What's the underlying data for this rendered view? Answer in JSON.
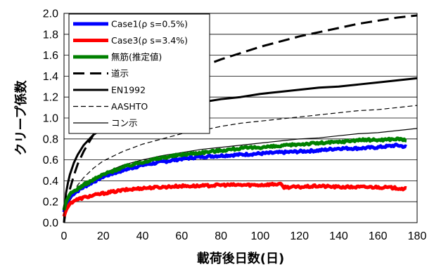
{
  "chart_data": {
    "type": "line",
    "xlabel": "載荷後日数(日)",
    "ylabel": "クリープ係数",
    "xlim": [
      0,
      180
    ],
    "ylim": [
      0,
      2.0
    ],
    "x_ticks": [
      0,
      20,
      40,
      60,
      80,
      100,
      120,
      140,
      160,
      180
    ],
    "y_ticks": [
      0.0,
      0.2,
      0.4,
      0.6,
      0.8,
      1.0,
      1.2,
      1.4,
      1.6,
      1.8,
      2.0
    ],
    "x_tick_labels": [
      "0",
      "20",
      "40",
      "60",
      "80",
      "100",
      "120",
      "140",
      "160",
      "180"
    ],
    "y_tick_labels": [
      "0.0",
      "0.2",
      "0.4",
      "0.6",
      "0.8",
      "1.0",
      "1.2",
      "1.4",
      "1.6",
      "1.8",
      "2.0"
    ],
    "grid": "horizontal",
    "legend_position": "top-left",
    "series": [
      {
        "name": "Case1(ρ s=0.5%)",
        "color": "#0000ff",
        "style": "measured",
        "x": [
          0,
          1,
          3,
          5,
          10,
          20,
          30,
          40,
          50,
          60,
          70,
          80,
          90,
          100,
          110,
          120,
          130,
          140,
          150,
          160,
          170,
          175
        ],
        "y": [
          0.1,
          0.18,
          0.24,
          0.28,
          0.34,
          0.44,
          0.5,
          0.55,
          0.58,
          0.61,
          0.63,
          0.64,
          0.65,
          0.66,
          0.67,
          0.68,
          0.69,
          0.71,
          0.71,
          0.72,
          0.74,
          0.72
        ]
      },
      {
        "name": "Case3(ρ s=3.4%)",
        "color": "#ff0000",
        "style": "measured",
        "x": [
          0,
          1,
          3,
          5,
          10,
          20,
          30,
          40,
          50,
          60,
          70,
          80,
          90,
          100,
          110,
          112,
          120,
          130,
          140,
          150,
          160,
          170,
          175
        ],
        "y": [
          0.06,
          0.12,
          0.18,
          0.21,
          0.24,
          0.28,
          0.31,
          0.33,
          0.34,
          0.35,
          0.35,
          0.36,
          0.36,
          0.36,
          0.37,
          0.34,
          0.34,
          0.35,
          0.34,
          0.34,
          0.34,
          0.33,
          0.32
        ]
      },
      {
        "name": "無筋(推定値)",
        "color": "#008000",
        "style": "measured",
        "x": [
          0,
          1,
          3,
          5,
          10,
          20,
          30,
          40,
          50,
          60,
          70,
          80,
          90,
          100,
          110,
          120,
          130,
          140,
          150,
          160,
          170,
          175
        ],
        "y": [
          0.12,
          0.2,
          0.27,
          0.3,
          0.36,
          0.46,
          0.53,
          0.58,
          0.62,
          0.65,
          0.67,
          0.69,
          0.71,
          0.72,
          0.73,
          0.75,
          0.76,
          0.77,
          0.79,
          0.79,
          0.8,
          0.79
        ]
      },
      {
        "name": "道示",
        "color": "#000000",
        "style": "thick-dash",
        "x": [
          0,
          1,
          2,
          3,
          5,
          7,
          10,
          15,
          20,
          30,
          40,
          50,
          60,
          70,
          80,
          90,
          100,
          110,
          120,
          130,
          140,
          150,
          160,
          170,
          180
        ],
        "y": [
          0,
          0.13,
          0.23,
          0.32,
          0.45,
          0.56,
          0.68,
          0.84,
          0.95,
          1.1,
          1.22,
          1.32,
          1.41,
          1.49,
          1.56,
          1.62,
          1.68,
          1.73,
          1.78,
          1.82,
          1.86,
          1.9,
          1.93,
          1.96,
          1.98
        ]
      },
      {
        "name": "EN1992",
        "color": "#000000",
        "style": "thick-solid",
        "x": [
          0,
          1,
          2,
          3,
          5,
          7,
          10,
          15,
          20,
          30,
          40,
          50,
          60,
          70,
          80,
          90,
          100,
          110,
          120,
          130,
          140,
          150,
          160,
          170,
          180
        ],
        "y": [
          0,
          0.28,
          0.38,
          0.46,
          0.57,
          0.65,
          0.74,
          0.84,
          0.9,
          0.98,
          1.04,
          1.08,
          1.12,
          1.15,
          1.18,
          1.2,
          1.23,
          1.25,
          1.27,
          1.29,
          1.3,
          1.32,
          1.34,
          1.36,
          1.38
        ]
      },
      {
        "name": "AASHTO",
        "color": "#000000",
        "style": "thin-dash",
        "x": [
          0,
          1,
          2,
          3,
          5,
          7,
          10,
          15,
          20,
          30,
          40,
          50,
          60,
          70,
          80,
          90,
          100,
          110,
          120,
          130,
          140,
          150,
          160,
          170,
          180
        ],
        "y": [
          0,
          0.12,
          0.18,
          0.23,
          0.3,
          0.36,
          0.43,
          0.52,
          0.59,
          0.68,
          0.75,
          0.8,
          0.85,
          0.88,
          0.92,
          0.95,
          0.97,
          0.99,
          1.01,
          1.03,
          1.05,
          1.07,
          1.08,
          1.1,
          1.12
        ]
      },
      {
        "name": "コン示",
        "color": "#000000",
        "style": "thin-solid",
        "x": [
          0,
          1,
          2,
          3,
          5,
          7,
          10,
          15,
          20,
          30,
          40,
          50,
          60,
          70,
          80,
          90,
          100,
          110,
          120,
          130,
          140,
          150,
          160,
          170,
          180
        ],
        "y": [
          0,
          0.12,
          0.17,
          0.21,
          0.27,
          0.31,
          0.36,
          0.42,
          0.47,
          0.55,
          0.6,
          0.64,
          0.67,
          0.7,
          0.72,
          0.74,
          0.76,
          0.78,
          0.8,
          0.81,
          0.83,
          0.85,
          0.86,
          0.88,
          0.9
        ]
      }
    ]
  }
}
